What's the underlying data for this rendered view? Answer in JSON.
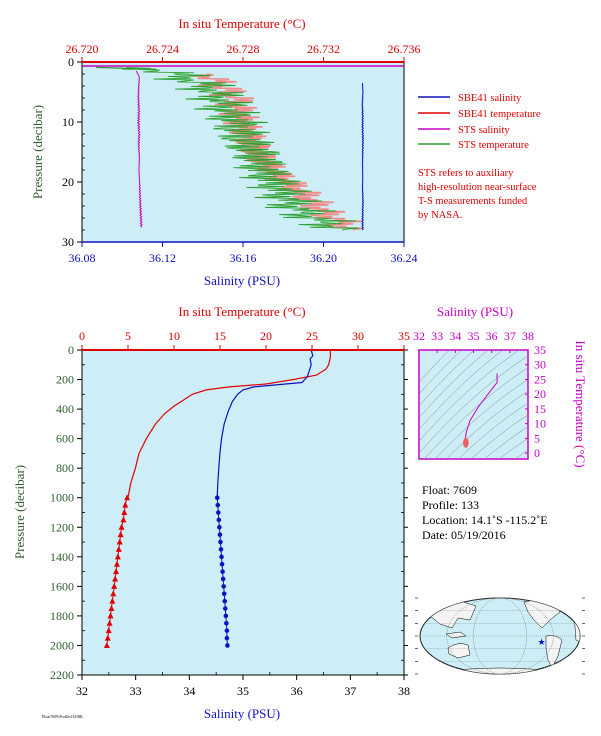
{
  "colors": {
    "plot_bg": "#cdeef7",
    "red": "#e00000",
    "blue": "#1010c0",
    "magenta": "#c800c8",
    "green": "#2ca02c",
    "salmon": "#f08c8c",
    "dark_green": "#2f5f2f",
    "axis": "#000000"
  },
  "chart_data": [
    {
      "id": "top",
      "type": "line",
      "ylabel": "Pressure (decibar)",
      "xlabel_bottom": "Salinity (PSU)",
      "xlabel_top": "In situ Temperature (°C)",
      "x_bottom_range": [
        36.08,
        36.24
      ],
      "x_bottom_ticks": [
        "36.08",
        "36.12",
        "36.16",
        "36.20",
        "36.24"
      ],
      "x_top_range": [
        26.72,
        26.736
      ],
      "x_top_ticks": [
        "26.720",
        "26.724",
        "26.728",
        "26.732",
        "26.736"
      ],
      "y_range": [
        0,
        30
      ],
      "y_ticks": [
        "0",
        "10",
        "20",
        "30"
      ],
      "legend": [
        {
          "label": "SBE41 salinity",
          "color": "#1010c0"
        },
        {
          "label": "SBE41 temperature",
          "color": "#e00000"
        },
        {
          "label": "STS salinity",
          "color": "#c800c8"
        },
        {
          "label": "STS temperature",
          "color": "#2ca02c"
        }
      ],
      "note": [
        "STS refers to auxiliary",
        "high-resolution near-surface",
        "T-S measurements funded",
        "by NASA."
      ],
      "series": [
        {
          "name": "SBE41 salinity",
          "axis": "salinity",
          "points": [
            [
              36.2194,
              3.5
            ],
            [
              36.2196,
              5
            ],
            [
              36.2193,
              7
            ],
            [
              36.2195,
              9
            ],
            [
              36.2194,
              11
            ],
            [
              36.2196,
              13
            ],
            [
              36.2195,
              15
            ],
            [
              36.2194,
              17
            ],
            [
              36.2195,
              19
            ],
            [
              36.2194,
              21
            ],
            [
              36.2196,
              23
            ],
            [
              36.2195,
              25
            ],
            [
              36.2194,
              27
            ],
            [
              36.2195,
              28
            ]
          ]
        },
        {
          "name": "SBE41 temperature",
          "axis": "temperature",
          "points": [
            [
              26.7262,
              2
            ],
            [
              26.7276,
              6
            ],
            [
              26.7279,
              10
            ],
            [
              26.7283,
              13
            ],
            [
              26.7289,
              16
            ],
            [
              26.7298,
              19
            ],
            [
              26.731,
              22
            ],
            [
              26.732,
              25
            ],
            [
              26.7335,
              28
            ]
          ]
        },
        {
          "name": "STS salinity",
          "axis": "salinity",
          "points": [
            [
              36.107,
              1.5
            ],
            [
              36.1085,
              2.5
            ],
            [
              36.1082,
              4
            ],
            [
              36.108,
              6
            ],
            [
              36.1083,
              8
            ],
            [
              36.1081,
              10
            ],
            [
              36.1084,
              12
            ],
            [
              36.1082,
              14
            ],
            [
              36.1085,
              16
            ],
            [
              36.1083,
              18
            ],
            [
              36.1086,
              20
            ],
            [
              36.1088,
              22
            ],
            [
              36.109,
              24
            ],
            [
              36.1093,
              26
            ],
            [
              36.1095,
              27.5
            ]
          ]
        },
        {
          "name": "STS temperature",
          "axis": "temperature",
          "points": [
            [
              26.7222,
              0.9
            ],
            [
              26.7237,
              1.2
            ],
            [
              26.725,
              2.5
            ],
            [
              26.7262,
              4
            ],
            [
              26.7268,
              6
            ],
            [
              26.7272,
              8
            ],
            [
              26.7277,
              10
            ],
            [
              26.7279,
              12
            ],
            [
              26.7283,
              14
            ],
            [
              26.7288,
              16
            ],
            [
              26.729,
              18
            ],
            [
              26.7295,
              20
            ],
            [
              26.73,
              22
            ],
            [
              26.7305,
              24
            ],
            [
              26.7315,
              26
            ],
            [
              26.733,
              28
            ]
          ]
        }
      ]
    },
    {
      "id": "profile",
      "type": "line",
      "ylabel": "Pressure (decibar)",
      "xlabel_bottom": "Salinity (PSU)",
      "xlabel_top": "In situ Temperature (°C)",
      "x_bottom_range": [
        32,
        38
      ],
      "x_bottom_ticks": [
        "32",
        "33",
        "34",
        "35",
        "36",
        "37",
        "38"
      ],
      "x_top_range": [
        0,
        35
      ],
      "x_top_ticks": [
        "0",
        "5",
        "10",
        "15",
        "20",
        "25",
        "30",
        "35"
      ],
      "y_range": [
        0,
        2200
      ],
      "y_ticks": [
        "0",
        "200",
        "400",
        "600",
        "800",
        "1000",
        "1200",
        "1400",
        "1600",
        "1800",
        "2000",
        "2200"
      ],
      "series": [
        {
          "name": "temperature",
          "axis": "temperature",
          "points": [
            [
              27.0,
              0
            ],
            [
              27.0,
              50
            ],
            [
              26.8,
              100
            ],
            [
              26.5,
              130
            ],
            [
              25.5,
              170
            ],
            [
              23.0,
              200
            ],
            [
              20.0,
              230
            ],
            [
              16.0,
              250
            ],
            [
              13.5,
              270
            ],
            [
              12.0,
              300
            ],
            [
              11.0,
              340
            ],
            [
              10.0,
              380
            ],
            [
              9.0,
              430
            ],
            [
              8.0,
              500
            ],
            [
              7.0,
              600
            ],
            [
              6.2,
              700
            ],
            [
              5.8,
              800
            ],
            [
              5.3,
              900
            ],
            [
              5.0,
              1000
            ]
          ],
          "markers_from": [
            [
              4.9,
              1000
            ],
            [
              4.7,
              1050
            ],
            [
              4.6,
              1100
            ],
            [
              4.5,
              1150
            ],
            [
              4.3,
              1200
            ],
            [
              4.2,
              1250
            ],
            [
              4.1,
              1300
            ],
            [
              4.0,
              1350
            ],
            [
              3.9,
              1400
            ],
            [
              3.8,
              1450
            ],
            [
              3.7,
              1500
            ],
            [
              3.6,
              1550
            ],
            [
              3.5,
              1600
            ],
            [
              3.4,
              1650
            ],
            [
              3.3,
              1700
            ],
            [
              3.2,
              1750
            ],
            [
              3.1,
              1800
            ],
            [
              3.0,
              1850
            ],
            [
              2.9,
              1900
            ],
            [
              2.8,
              1950
            ],
            [
              2.7,
              2000
            ]
          ]
        },
        {
          "name": "salinity",
          "axis": "salinity",
          "points": [
            [
              36.27,
              0
            ],
            [
              36.3,
              40
            ],
            [
              36.25,
              60
            ],
            [
              36.27,
              100
            ],
            [
              36.2,
              180
            ],
            [
              36.1,
              220
            ],
            [
              35.2,
              250
            ],
            [
              35.0,
              270
            ],
            [
              34.9,
              300
            ],
            [
              34.8,
              350
            ],
            [
              34.72,
              420
            ],
            [
              34.65,
              500
            ],
            [
              34.6,
              600
            ],
            [
              34.57,
              700
            ],
            [
              34.55,
              800
            ],
            [
              34.53,
              900
            ],
            [
              34.52,
              1000
            ]
          ],
          "markers_from": [
            [
              34.52,
              1000
            ],
            [
              34.53,
              1050
            ],
            [
              34.54,
              1100
            ],
            [
              34.55,
              1150
            ],
            [
              34.56,
              1200
            ],
            [
              34.57,
              1250
            ],
            [
              34.58,
              1300
            ],
            [
              34.59,
              1350
            ],
            [
              34.6,
              1400
            ],
            [
              34.61,
              1450
            ],
            [
              34.62,
              1500
            ],
            [
              34.63,
              1550
            ],
            [
              34.64,
              1600
            ],
            [
              34.65,
              1650
            ],
            [
              34.66,
              1700
            ],
            [
              34.67,
              1750
            ],
            [
              34.68,
              1800
            ],
            [
              34.69,
              1850
            ],
            [
              34.7,
              1900
            ],
            [
              34.7,
              1950
            ],
            [
              34.71,
              2000
            ]
          ]
        }
      ]
    },
    {
      "id": "ts-diagram",
      "type": "scatter",
      "xlabel": "Salinity (PSU)",
      "ylabel": "In situ Temperature (°C)",
      "x_range": [
        32,
        38
      ],
      "x_ticks": [
        "32",
        "33",
        "34",
        "35",
        "36",
        "37",
        "38"
      ],
      "y_range": [
        -2,
        35
      ],
      "y_ticks": [
        "0",
        "5",
        "10",
        "15",
        "20",
        "25",
        "30",
        "35"
      ],
      "points": [
        [
          36.3,
          27
        ],
        [
          36.3,
          25
        ],
        [
          36.3,
          24
        ],
        [
          35.8,
          20
        ],
        [
          35.3,
          16
        ],
        [
          35.0,
          13
        ],
        [
          34.8,
          11
        ],
        [
          34.7,
          9
        ],
        [
          34.6,
          7
        ],
        [
          34.55,
          5
        ],
        [
          34.55,
          4
        ],
        [
          34.6,
          3
        ],
        [
          34.65,
          2.7
        ]
      ]
    }
  ],
  "info": {
    "float": "Float:  7609",
    "profile": "Profile:  133",
    "location": "Location:  14.1˚S  -115.2˚E",
    "date": "Date:  05/19/2016"
  },
  "map": {
    "marker": {
      "lon": -115.2,
      "lat": -14.1
    }
  },
  "footer": "Float7609/Profile133/BK"
}
